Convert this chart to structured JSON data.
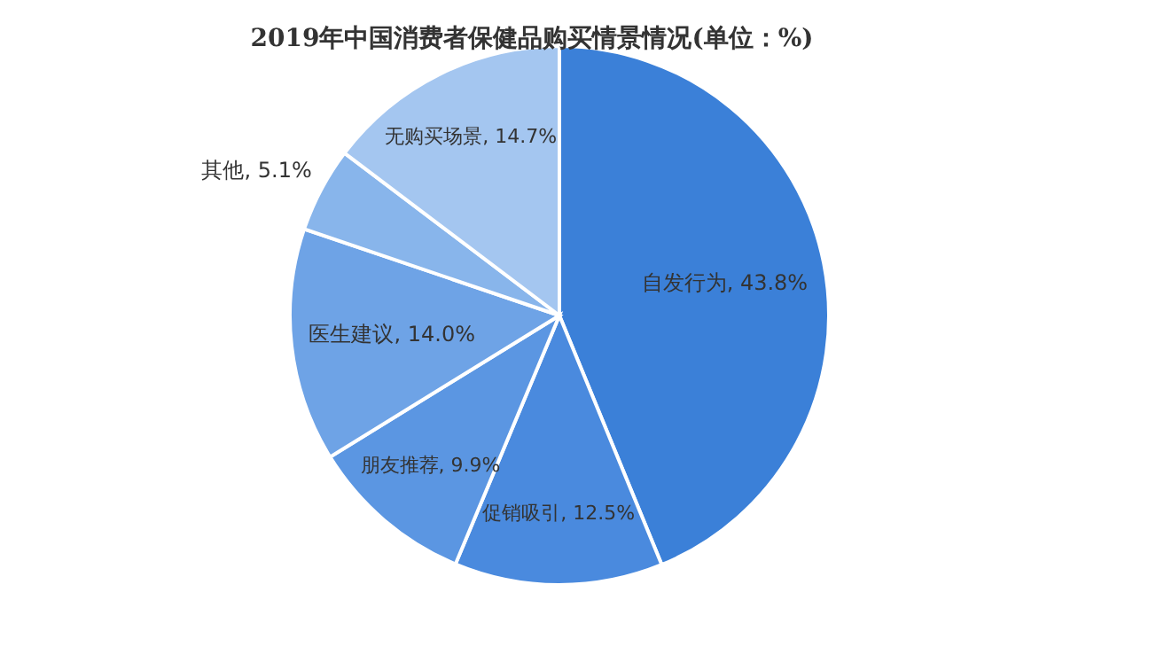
{
  "chart_data": {
    "type": "pie",
    "title": "2019年中国消费者保健品购买情景情况(单位：%)",
    "categories": [
      "自发行为",
      "促销吸引",
      "朋友推荐",
      "医生建议",
      "其他",
      "无购买场景"
    ],
    "values": [
      43.8,
      12.5,
      9.9,
      14.0,
      5.1,
      14.7
    ],
    "value_labels": [
      "43.8%",
      "12.5%",
      "9.9%",
      "14.0%",
      "5.1%",
      "14.7%"
    ],
    "colors": [
      "#3b80d8",
      "#4a8ade",
      "#5b96e2",
      "#6ea3e6",
      "#88b5eb",
      "#a4c6f0"
    ]
  }
}
